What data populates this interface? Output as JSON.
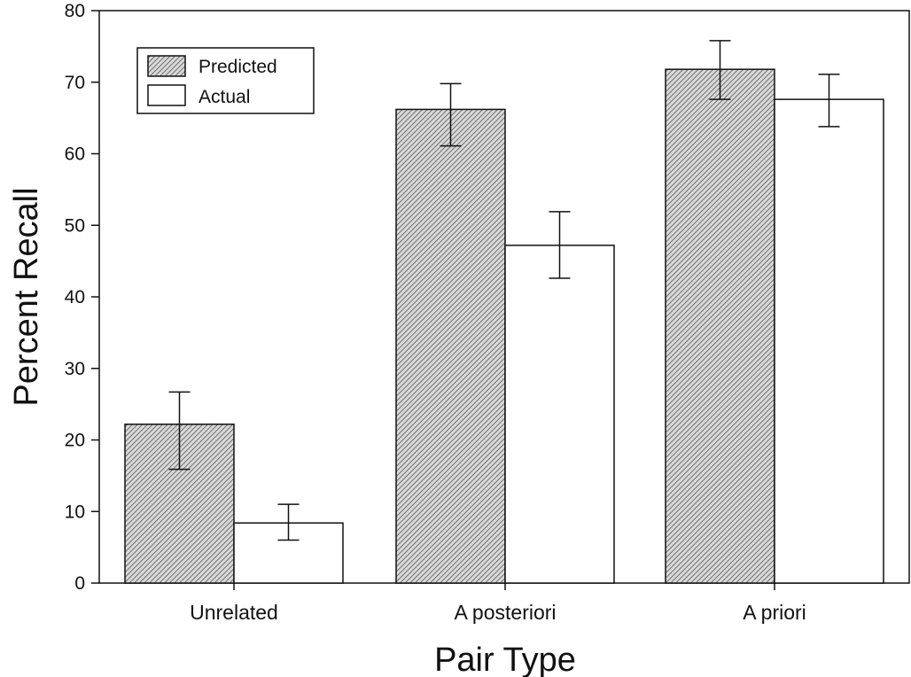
{
  "chart_data": {
    "type": "bar",
    "title": "",
    "xlabel": "Pair Type",
    "ylabel": "Percent Recall",
    "ylim": [
      0,
      80
    ],
    "yticks": [
      0,
      10,
      20,
      30,
      40,
      50,
      60,
      70,
      80
    ],
    "categories": [
      "Unrelated",
      "A posteriori",
      "A priori"
    ],
    "series": [
      {
        "name": "Predicted",
        "values": [
          22.2,
          66.2,
          71.8
        ],
        "error_low": [
          15.9,
          61.1,
          67.6
        ],
        "error_high": [
          26.7,
          69.8,
          75.8
        ],
        "fill": "hatched"
      },
      {
        "name": "Actual",
        "values": [
          8.4,
          47.2,
          67.6
        ],
        "error_low": [
          6.0,
          42.6,
          63.8
        ],
        "error_high": [
          11.0,
          51.9,
          71.1
        ],
        "fill": "white"
      }
    ],
    "legend_position": "top-left",
    "grid": false
  }
}
